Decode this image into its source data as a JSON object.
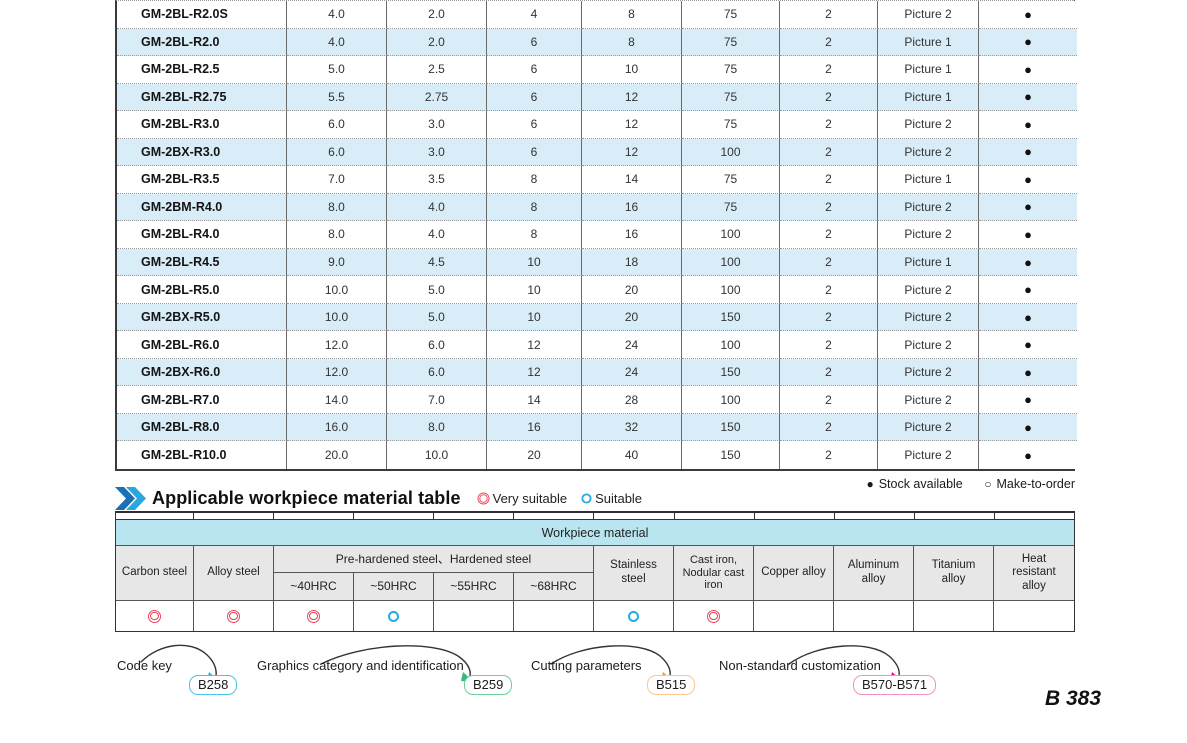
{
  "product_table": {
    "rows": [
      [
        "GM-2BL-R2.0S",
        "4.0",
        "2.0",
        "4",
        "8",
        "75",
        "2",
        "Picture 2",
        "●"
      ],
      [
        "GM-2BL-R2.0",
        "4.0",
        "2.0",
        "6",
        "8",
        "75",
        "2",
        "Picture 1",
        "●"
      ],
      [
        "GM-2BL-R2.5",
        "5.0",
        "2.5",
        "6",
        "10",
        "75",
        "2",
        "Picture 1",
        "●"
      ],
      [
        "GM-2BL-R2.75",
        "5.5",
        "2.75",
        "6",
        "12",
        "75",
        "2",
        "Picture 1",
        "●"
      ],
      [
        "GM-2BL-R3.0",
        "6.0",
        "3.0",
        "6",
        "12",
        "75",
        "2",
        "Picture 2",
        "●"
      ],
      [
        "GM-2BX-R3.0",
        "6.0",
        "3.0",
        "6",
        "12",
        "100",
        "2",
        "Picture 2",
        "●"
      ],
      [
        "GM-2BL-R3.5",
        "7.0",
        "3.5",
        "8",
        "14",
        "75",
        "2",
        "Picture 1",
        "●"
      ],
      [
        "GM-2BM-R4.0",
        "8.0",
        "4.0",
        "8",
        "16",
        "75",
        "2",
        "Picture 2",
        "●"
      ],
      [
        "GM-2BL-R4.0",
        "8.0",
        "4.0",
        "8",
        "16",
        "100",
        "2",
        "Picture 2",
        "●"
      ],
      [
        "GM-2BL-R4.5",
        "9.0",
        "4.5",
        "10",
        "18",
        "100",
        "2",
        "Picture 1",
        "●"
      ],
      [
        "GM-2BL-R5.0",
        "10.0",
        "5.0",
        "10",
        "20",
        "100",
        "2",
        "Picture 2",
        "●"
      ],
      [
        "GM-2BX-R5.0",
        "10.0",
        "5.0",
        "10",
        "20",
        "150",
        "2",
        "Picture 2",
        "●"
      ],
      [
        "GM-2BL-R6.0",
        "12.0",
        "6.0",
        "12",
        "24",
        "100",
        "2",
        "Picture 2",
        "●"
      ],
      [
        "GM-2BX-R6.0",
        "12.0",
        "6.0",
        "12",
        "24",
        "150",
        "2",
        "Picture 2",
        "●"
      ],
      [
        "GM-2BL-R7.0",
        "14.0",
        "7.0",
        "14",
        "28",
        "100",
        "2",
        "Picture 2",
        "●"
      ],
      [
        "GM-2BL-R8.0",
        "16.0",
        "8.0",
        "16",
        "32",
        "150",
        "2",
        "Picture 2",
        "●"
      ],
      [
        "GM-2BL-R10.0",
        "20.0",
        "10.0",
        "20",
        "40",
        "150",
        "2",
        "Picture 2",
        "●"
      ]
    ]
  },
  "stock_legend": {
    "stock_symbol": "●",
    "stock_label": "Stock available",
    "mto_symbol": "○",
    "mto_label": "Make-to-order"
  },
  "section": {
    "title": "Applicable workpiece material table",
    "very_suitable_label": "Very suitable",
    "suitable_label": "Suitable",
    "very_suitable_color": "#e8475a",
    "suitable_color": "#2aa9e0"
  },
  "workpiece_table": {
    "title": "Workpiece material",
    "col_carbon": "Carbon steel",
    "col_alloy": "Alloy steel",
    "group_label": "Pre-hardened steel、Hardened steel",
    "subs": [
      "~40HRC",
      "~50HRC",
      "~55HRC",
      "~68HRC"
    ],
    "col_stainless": "Stainless steel",
    "col_cast": "Cast iron, Nodular cast iron",
    "col_copper": "Copper alloy",
    "col_aluminum": "Aluminum alloy",
    "col_titanium": "Titanium alloy",
    "col_heat": "Heat resistant alloy",
    "ratings": [
      "very",
      "very",
      "very",
      "suitable",
      "none",
      "none",
      "suitable",
      "very",
      "none",
      "none",
      "none",
      "none"
    ]
  },
  "footnotes": {
    "items": [
      {
        "label": "Code key",
        "badge": "B258",
        "accent": "#4cc2e8",
        "arrow": "#29a8e0"
      },
      {
        "label": "Graphics category and identification",
        "badge": "B259",
        "accent": "#6fce9a",
        "arrow": "#3cb878"
      },
      {
        "label": "Cutting parameters",
        "badge": "B515",
        "accent": "#f8c98c",
        "arrow": "#f7941d"
      },
      {
        "label": "Non-standard customization",
        "badge": "B570-B571",
        "accent": "#f392c0",
        "arrow": "#ec008c"
      }
    ]
  },
  "page_number": "B 383"
}
